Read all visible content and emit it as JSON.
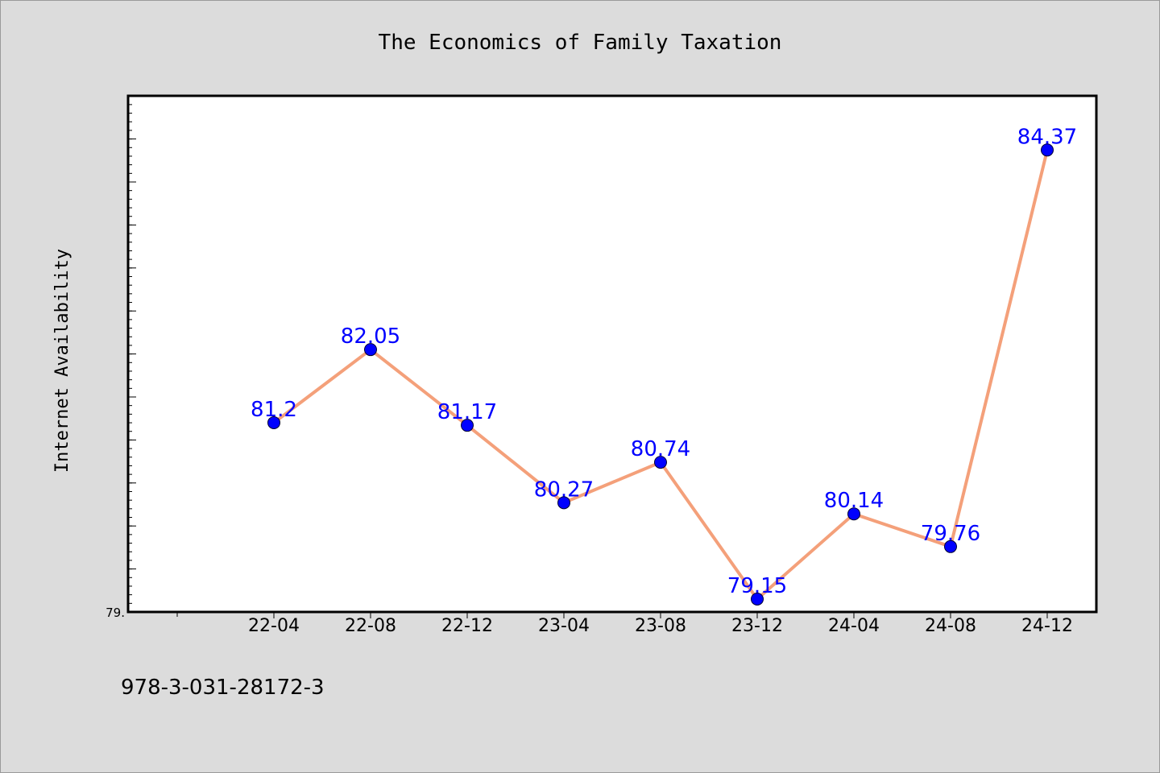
{
  "chart_data": {
    "type": "line",
    "title": "The Economics of Family Taxation",
    "xlabel": "",
    "ylabel": "Internet Availability",
    "categories": [
      "22-04",
      "22-08",
      "22-12",
      "23-04",
      "23-08",
      "23-12",
      "24-04",
      "24-08",
      "24-12"
    ],
    "series": [
      {
        "values": [
          81.2,
          82.05,
          81.17,
          80.27,
          80.74,
          79.15,
          80.14,
          79.76,
          84.37
        ],
        "data_labels": [
          "81.2",
          "82.05",
          "81.17",
          "80.27",
          "80.74",
          "79.15",
          "80.14",
          "79.76",
          "84.37"
        ]
      }
    ],
    "ytick_labels": [
      "79."
    ],
    "ylim": [
      79.0,
      85.0
    ],
    "grid": false,
    "legend": "none",
    "colors": {
      "line": "#f4a07a",
      "marker": "#0000ff",
      "marker_edge": "#000033",
      "data_label": "#0000ff",
      "plot_background": "#ffffff",
      "figure_background": "#dcdcdc"
    }
  },
  "footer": {
    "isbn": "978-3-031-28172-3"
  }
}
